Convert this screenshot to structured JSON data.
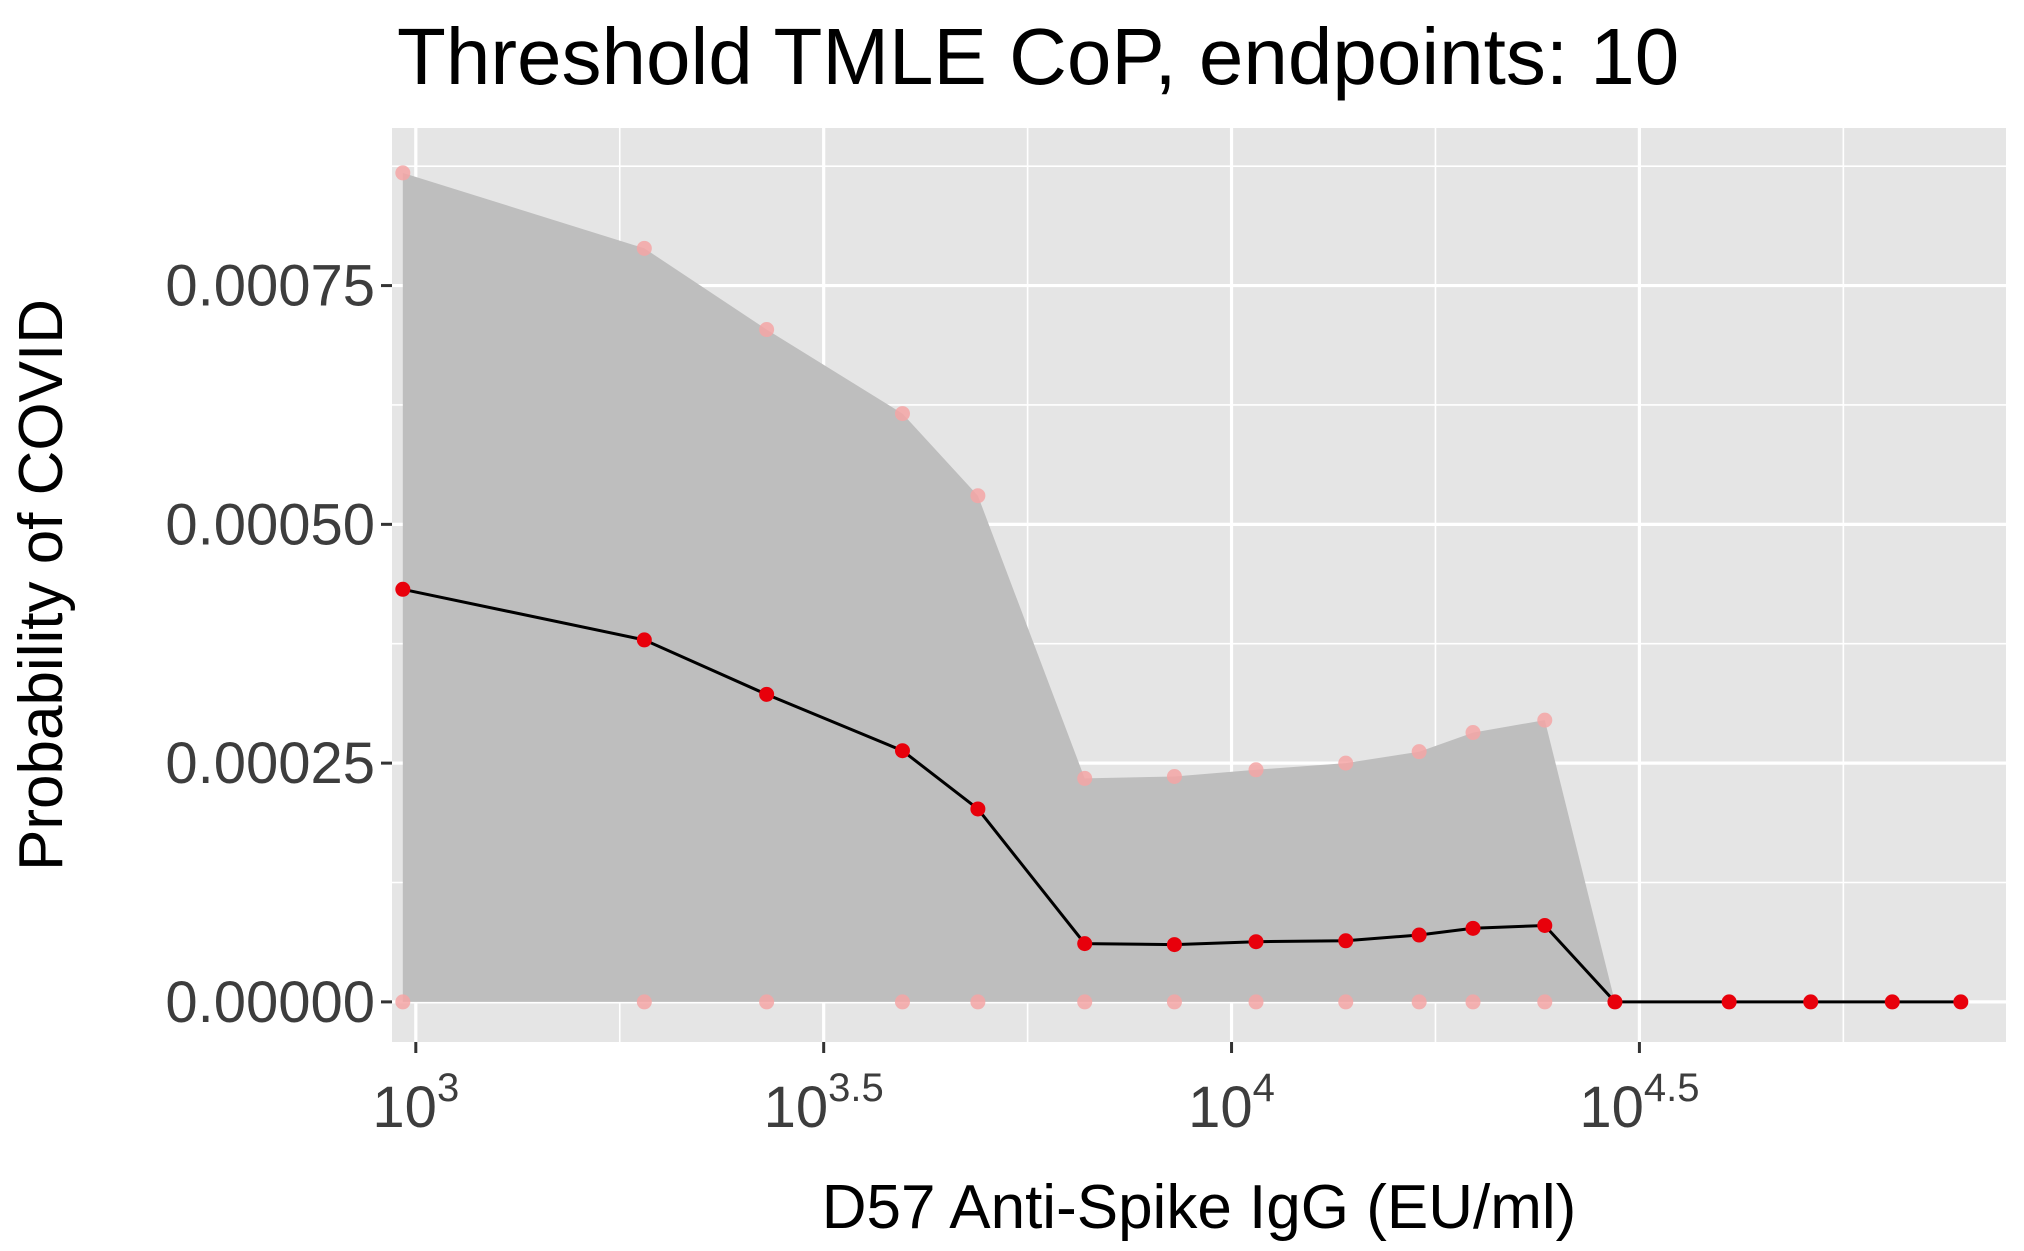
{
  "chart_data": {
    "type": "line",
    "title": "Threshold TMLE CoP, endpoints: 10",
    "xlabel": "D57 Anti-Spike IgG (EU/ml)",
    "ylabel": "Probability of COVID",
    "x_scale": "log10",
    "xlim": [
      935,
      89000
    ],
    "ylim": [
      -4.2e-05,
      0.000915
    ],
    "grid": true,
    "x_ticks": [
      {
        "value": 1000,
        "base": "10",
        "exponent": "3"
      },
      {
        "value": 3162.28,
        "base": "10",
        "exponent": "3.5"
      },
      {
        "value": 10000,
        "base": "10",
        "exponent": "4"
      },
      {
        "value": 31622.8,
        "base": "10",
        "exponent": "4.5"
      }
    ],
    "x_minor_gridlines": [
      1778.28,
      5623.41,
      17782.8,
      56234.1
    ],
    "y_ticks": [
      {
        "value": 0,
        "label": "0.00000"
      },
      {
        "value": 0.00025,
        "label": "0.00025"
      },
      {
        "value": 0.0005,
        "label": "0.00050"
      },
      {
        "value": 0.00075,
        "label": "0.00075"
      }
    ],
    "y_minor_gridlines": [
      0.000125,
      0.000375,
      0.000625,
      0.000875
    ],
    "estimate": {
      "x": [
        964,
        1906,
        2692,
        3950,
        4887,
        6607,
        8511,
        10715,
        13804,
        16982,
        19770,
        24210,
        29512,
        40738,
        51286,
        64565,
        78343
      ],
      "y": [
        0.000432,
        0.000379,
        0.000322,
        0.000263,
        0.000202,
        6.1e-05,
        6e-05,
        6.3e-05,
        6.4e-05,
        7e-05,
        7.7e-05,
        8e-05,
        0.0,
        0.0,
        0.0,
        0.0,
        0.0
      ]
    },
    "ci": {
      "x": [
        964,
        1906,
        2692,
        3950,
        4887,
        6607,
        8511,
        10715,
        13804,
        16982,
        19770,
        24210
      ],
      "upper": [
        0.000868,
        0.000789,
        0.000704,
        0.000616,
        0.00053,
        0.000234,
        0.000236,
        0.000243,
        0.00025,
        0.000262,
        0.000282,
        0.000295
      ],
      "lower": [
        0,
        0,
        0,
        0,
        0,
        0,
        0,
        0,
        0,
        0,
        0,
        0
      ]
    },
    "colors": {
      "panel": "#e5e5e5",
      "grid": "#ffffff",
      "ribbon": "#bebebe",
      "line": "#000000",
      "point": "#e8000b",
      "ci_point": "#f4a6a6"
    }
  }
}
